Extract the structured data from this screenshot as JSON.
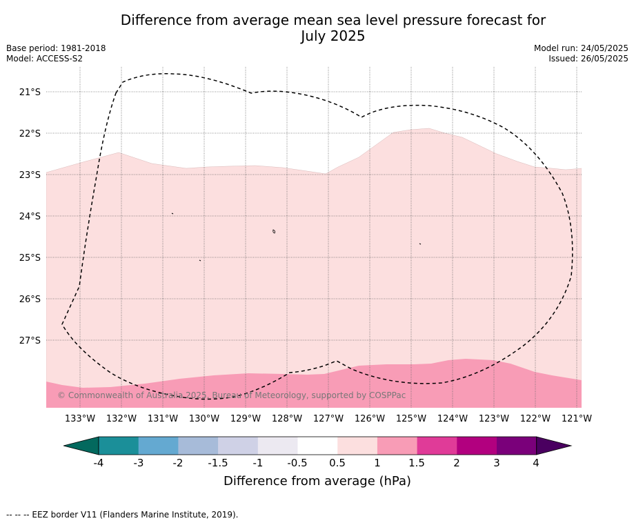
{
  "title": "Difference from average mean sea level pressure forecast for\nJuly 2025",
  "info": {
    "base_period": "Base period: 1981-2018",
    "model": "Model: ACCESS-S2",
    "model_run": "Model run: 24/05/2025",
    "issued": "Issued: 26/05/2025"
  },
  "map": {
    "copyright": "© Commonwealth of Australia 2025, Bureau of Meteorology, supported by COSPPac",
    "lon_labels": [
      "133°W",
      "132°W",
      "131°W",
      "130°W",
      "129°W",
      "128°W",
      "127°W",
      "126°W",
      "125°W",
      "124°W",
      "123°W",
      "122°W",
      "121°W"
    ],
    "lat_labels": [
      "21°S",
      "22°S",
      "23°S",
      "24°S",
      "25°S",
      "26°S",
      "27°S"
    ],
    "fill_colors": {
      "band_0_5_to_1": "#fcdfdf",
      "band_1_to_1_5": "#f89cb6"
    }
  },
  "colorbar": {
    "label": "Difference from average (hPa)",
    "ticks": [
      "-4",
      "-3",
      "-2",
      "-1.5",
      "-1",
      "-0.5",
      "0.5",
      "1",
      "1.5",
      "2",
      "3",
      "4"
    ],
    "colors": [
      "#03695e",
      "#1b8f99",
      "#64a9d1",
      "#a7bbd9",
      "#cfd1e6",
      "#ece9f1",
      "#ffffff",
      "#fcdfdf",
      "#f89cb6",
      "#e03b98",
      "#b2007f",
      "#7a007a",
      "#4a0060"
    ]
  },
  "footer": "--  --  -- EEZ border V11 (Flanders Marine Institute, 2019)."
}
